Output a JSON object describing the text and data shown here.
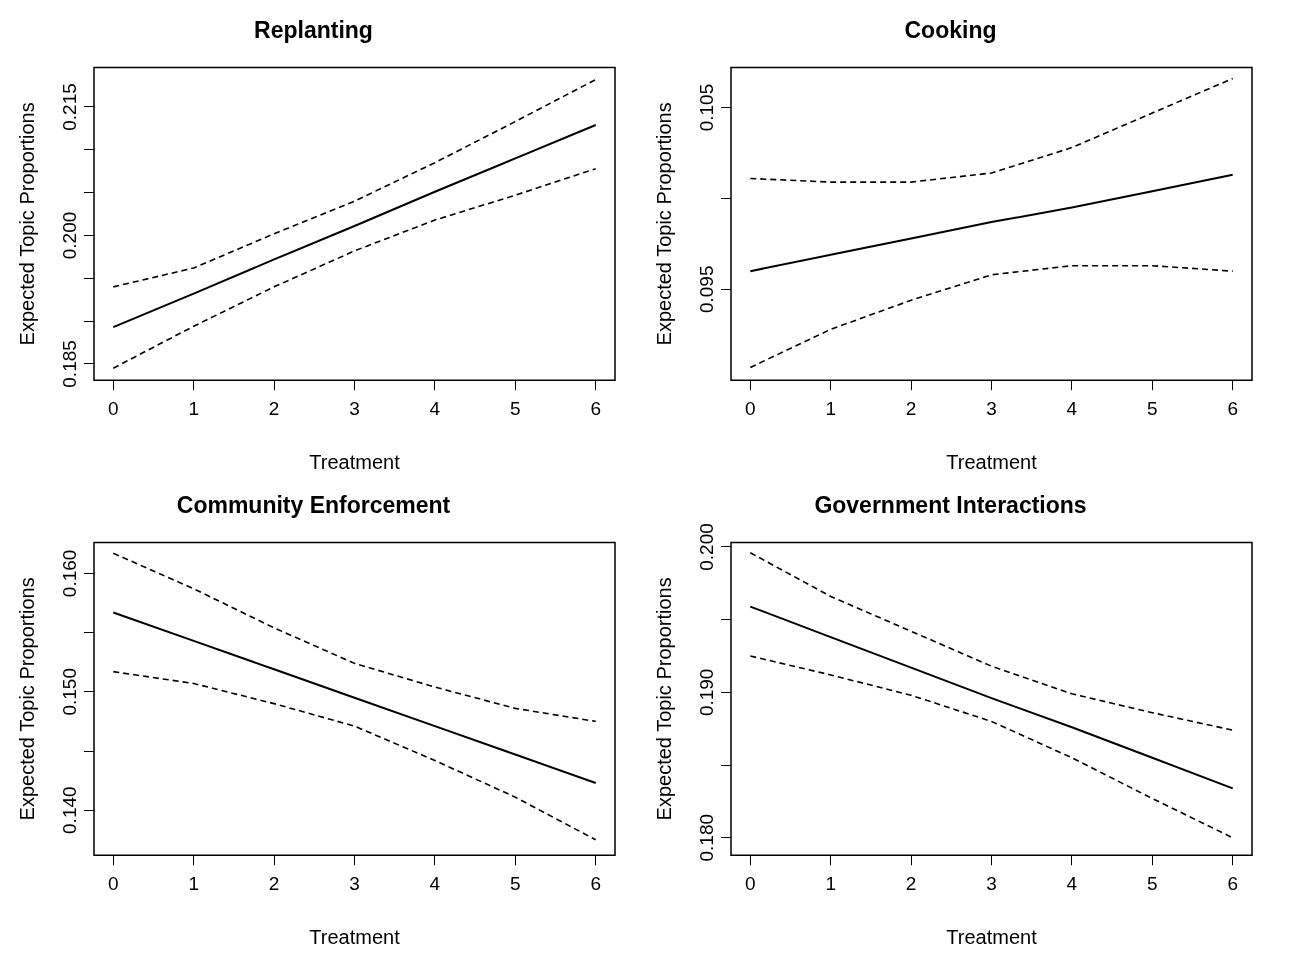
{
  "chart_data": [
    {
      "type": "line",
      "title": "Replanting",
      "xlabel": "Treatment",
      "ylabel": "Expected Topic Proportions",
      "x": [
        0,
        1,
        2,
        3,
        4,
        5,
        6
      ],
      "xlim": [
        -0.24,
        6.24
      ],
      "xticks": [
        0,
        1,
        2,
        3,
        4,
        5,
        6
      ],
      "ylim": [
        0.1831,
        0.2196
      ],
      "yticks": [
        {
          "value": 0.185,
          "label": "0.185"
        },
        {
          "value": 0.19,
          "label": null
        },
        {
          "value": 0.195,
          "label": null
        },
        {
          "value": 0.2,
          "label": "0.200"
        },
        {
          "value": 0.205,
          "label": null
        },
        {
          "value": 0.21,
          "label": null
        },
        {
          "value": 0.215,
          "label": "0.215"
        }
      ],
      "marker": "none",
      "line_style": "solid",
      "series": [
        {
          "color": "#000000",
          "values": [
            0.1893,
            0.1932,
            0.1972,
            0.2011,
            0.2051,
            0.209,
            0.2129
          ]
        },
        {
          "color": "#000000",
          "line_style": "dashed",
          "values": [
            0.194,
            0.1962,
            0.2002,
            0.204,
            0.2085,
            0.2133,
            0.2182
          ]
        },
        {
          "color": "#000000",
          "line_style": "dashed",
          "values": [
            0.1845,
            0.1894,
            0.194,
            0.1982,
            0.2018,
            0.2047,
            0.2078
          ]
        }
      ]
    },
    {
      "type": "line",
      "title": "Cooking",
      "xlabel": "Treatment",
      "ylabel": "Expected Topic Proportions",
      "x": [
        0,
        1,
        2,
        3,
        4,
        5,
        6
      ],
      "xlim": [
        -0.24,
        6.24
      ],
      "xticks": [
        0,
        1,
        2,
        3,
        4,
        5,
        6
      ],
      "ylim": [
        0.09,
        0.1072
      ],
      "yticks": [
        {
          "value": 0.095,
          "label": "0.095"
        },
        {
          "value": 0.1,
          "label": null
        },
        {
          "value": 0.105,
          "label": "0.105"
        }
      ],
      "marker": "none",
      "line_style": "solid",
      "series": [
        {
          "color": "#000000",
          "values": [
            0.096,
            0.0969,
            0.0978,
            0.0987,
            0.0995,
            0.1004,
            0.1013
          ]
        },
        {
          "color": "#000000",
          "line_style": "dashed",
          "values": [
            0.1011,
            0.1009,
            0.1009,
            0.1014,
            0.1028,
            0.1047,
            0.1066
          ]
        },
        {
          "color": "#000000",
          "line_style": "dashed",
          "values": [
            0.0907,
            0.0928,
            0.0944,
            0.0958,
            0.0963,
            0.0963,
            0.096
          ]
        }
      ]
    },
    {
      "type": "line",
      "title": "Community Enforcement",
      "xlabel": "Treatment",
      "ylabel": "Expected Topic Proportions",
      "x": [
        0,
        1,
        2,
        3,
        4,
        5,
        6
      ],
      "xlim": [
        -0.24,
        6.24
      ],
      "xticks": [
        0,
        1,
        2,
        3,
        4,
        5,
        6
      ],
      "ylim": [
        0.1362,
        0.1626
      ],
      "yticks": [
        {
          "value": 0.14,
          "label": "0.140"
        },
        {
          "value": 0.145,
          "label": null
        },
        {
          "value": 0.15,
          "label": "0.150"
        },
        {
          "value": 0.155,
          "label": null
        },
        {
          "value": 0.16,
          "label": "0.160"
        }
      ],
      "marker": "none",
      "line_style": "solid",
      "series": [
        {
          "color": "#000000",
          "values": [
            0.1567,
            0.1543,
            0.1519,
            0.1495,
            0.1471,
            0.1447,
            0.1423
          ]
        },
        {
          "color": "#000000",
          "line_style": "dashed",
          "values": [
            0.1617,
            0.1587,
            0.1554,
            0.1524,
            0.1504,
            0.1486,
            0.1475
          ]
        },
        {
          "color": "#000000",
          "line_style": "dashed",
          "values": [
            0.1517,
            0.1507,
            0.149,
            0.1471,
            0.1442,
            0.1411,
            0.1375
          ]
        }
      ]
    },
    {
      "type": "line",
      "title": "Government Interactions",
      "xlabel": "Treatment",
      "ylabel": "Expected Topic Proportions",
      "x": [
        0,
        1,
        2,
        3,
        4,
        5,
        6
      ],
      "xlim": [
        -0.24,
        6.24
      ],
      "xticks": [
        0,
        1,
        2,
        3,
        4,
        5,
        6
      ],
      "ylim": [
        0.1788,
        0.2003
      ],
      "yticks": [
        {
          "value": 0.18,
          "label": "0.180"
        },
        {
          "value": 0.185,
          "label": null
        },
        {
          "value": 0.19,
          "label": "0.190"
        },
        {
          "value": 0.195,
          "label": null
        },
        {
          "value": 0.2,
          "label": "0.200"
        }
      ],
      "marker": "none",
      "line_style": "solid",
      "series": [
        {
          "color": "#000000",
          "values": [
            0.1959,
            0.1938,
            0.1917,
            0.1896,
            0.1876,
            0.1855,
            0.1834
          ]
        },
        {
          "color": "#000000",
          "line_style": "dashed",
          "values": [
            0.1996,
            0.1966,
            0.1942,
            0.1918,
            0.1899,
            0.1886,
            0.1874
          ]
        },
        {
          "color": "#000000",
          "line_style": "dashed",
          "values": [
            0.1925,
            0.1912,
            0.1898,
            0.188,
            0.1855,
            0.1827,
            0.18
          ]
        }
      ]
    }
  ]
}
